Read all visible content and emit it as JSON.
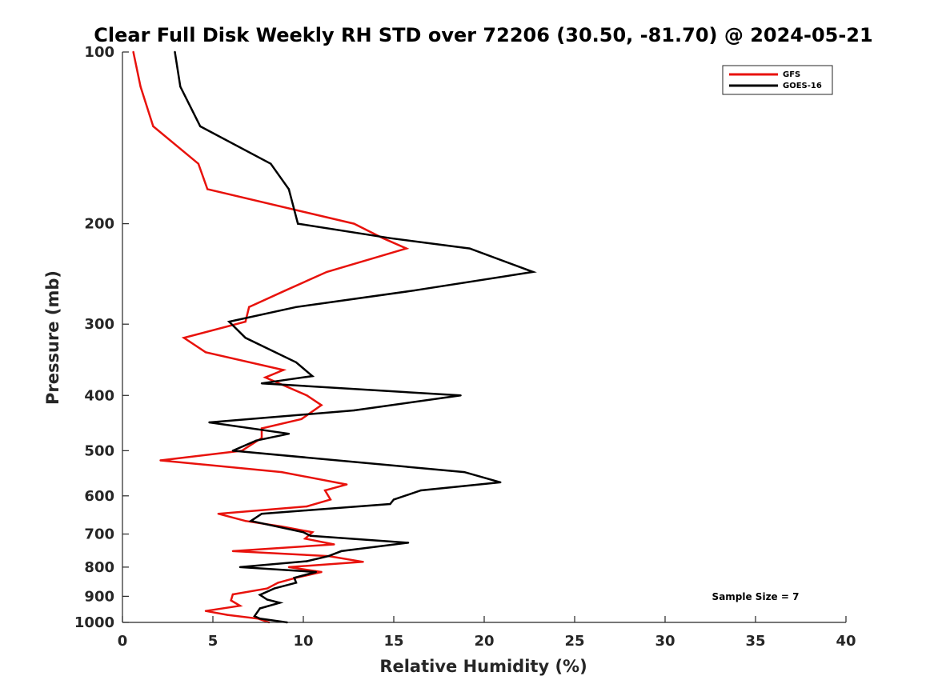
{
  "chart_data": {
    "type": "line",
    "title": "Clear Full Disk Weekly RH STD over 72206 (30.50, -81.70) @ 2024-05-21",
    "xlabel": "Relative Humidity (%)",
    "ylabel": "Pressure (mb)",
    "xlim": [
      0,
      40
    ],
    "ylim": [
      100,
      1000
    ],
    "y_scale": "log",
    "y_reversed": true,
    "x_ticks": [
      "0",
      "5",
      "10",
      "15",
      "20",
      "25",
      "30",
      "35",
      "40"
    ],
    "y_ticks": [
      "100",
      "200",
      "300",
      "400",
      "500",
      "600",
      "700",
      "800",
      "900",
      "1000"
    ],
    "grid": false,
    "legend_position": "top-right",
    "annotation": "Sample Size = 7",
    "series": [
      {
        "name": "GFS",
        "color": "#e8120c",
        "points": [
          [
            0.6,
            100
          ],
          [
            1.0,
            115
          ],
          [
            1.7,
            135
          ],
          [
            4.2,
            157
          ],
          [
            4.7,
            174
          ],
          [
            12.8,
            200
          ],
          [
            14.4,
            212
          ],
          [
            15.7,
            221
          ],
          [
            11.3,
            243
          ],
          [
            9.0,
            262
          ],
          [
            7.0,
            280
          ],
          [
            6.8,
            297
          ],
          [
            3.4,
            317
          ],
          [
            4.6,
            336
          ],
          [
            8.9,
            361
          ],
          [
            7.9,
            372
          ],
          [
            10.2,
            400
          ],
          [
            11.0,
            416
          ],
          [
            9.9,
            440
          ],
          [
            7.7,
            457
          ],
          [
            7.7,
            475
          ],
          [
            6.6,
            500
          ],
          [
            2.1,
            520
          ],
          [
            8.8,
            545
          ],
          [
            12.4,
            573
          ],
          [
            11.2,
            587
          ],
          [
            11.5,
            609
          ],
          [
            10.2,
            626
          ],
          [
            5.3,
            645
          ],
          [
            6.8,
            664
          ],
          [
            8.8,
            679
          ],
          [
            10.5,
            695
          ],
          [
            10.1,
            713
          ],
          [
            11.7,
            730
          ],
          [
            6.1,
            750
          ],
          [
            11.4,
            765
          ],
          [
            13.3,
            783
          ],
          [
            9.2,
            800
          ],
          [
            11.0,
            816
          ],
          [
            9.6,
            835
          ],
          [
            8.6,
            852
          ],
          [
            8.0,
            872
          ],
          [
            6.1,
            893
          ],
          [
            6.0,
            915
          ],
          [
            6.5,
            935
          ],
          [
            4.6,
            955
          ],
          [
            5.8,
            970
          ],
          [
            7.5,
            985
          ],
          [
            8.1,
            1000
          ]
        ]
      },
      {
        "name": "GOES-16",
        "color": "#000000",
        "points": [
          [
            2.9,
            100
          ],
          [
            3.2,
            115
          ],
          [
            4.3,
            135
          ],
          [
            8.2,
            157
          ],
          [
            9.2,
            174
          ],
          [
            9.7,
            200
          ],
          [
            14.8,
            212
          ],
          [
            19.2,
            221
          ],
          [
            22.7,
            243
          ],
          [
            16.1,
            262
          ],
          [
            9.6,
            280
          ],
          [
            5.9,
            297
          ],
          [
            6.8,
            317
          ],
          [
            9.6,
            350
          ],
          [
            10.5,
            370
          ],
          [
            7.7,
            381
          ],
          [
            18.7,
            400
          ],
          [
            12.8,
            425
          ],
          [
            4.8,
            446
          ],
          [
            9.2,
            467
          ],
          [
            7.4,
            480
          ],
          [
            6.1,
            500
          ],
          [
            18.9,
            545
          ],
          [
            20.9,
            568
          ],
          [
            16.5,
            587
          ],
          [
            15.0,
            609
          ],
          [
            14.8,
            620
          ],
          [
            7.7,
            645
          ],
          [
            7.1,
            664
          ],
          [
            10.0,
            695
          ],
          [
            10.4,
            705
          ],
          [
            15.8,
            725
          ],
          [
            12.1,
            750
          ],
          [
            11.4,
            765
          ],
          [
            10.2,
            781
          ],
          [
            6.5,
            800
          ],
          [
            10.7,
            816
          ],
          [
            9.5,
            835
          ],
          [
            9.6,
            852
          ],
          [
            8.4,
            872
          ],
          [
            7.6,
            895
          ],
          [
            8.0,
            912
          ],
          [
            8.7,
            924
          ],
          [
            7.6,
            945
          ],
          [
            7.3,
            975
          ],
          [
            7.6,
            985
          ],
          [
            9.1,
            1000
          ]
        ]
      }
    ]
  }
}
